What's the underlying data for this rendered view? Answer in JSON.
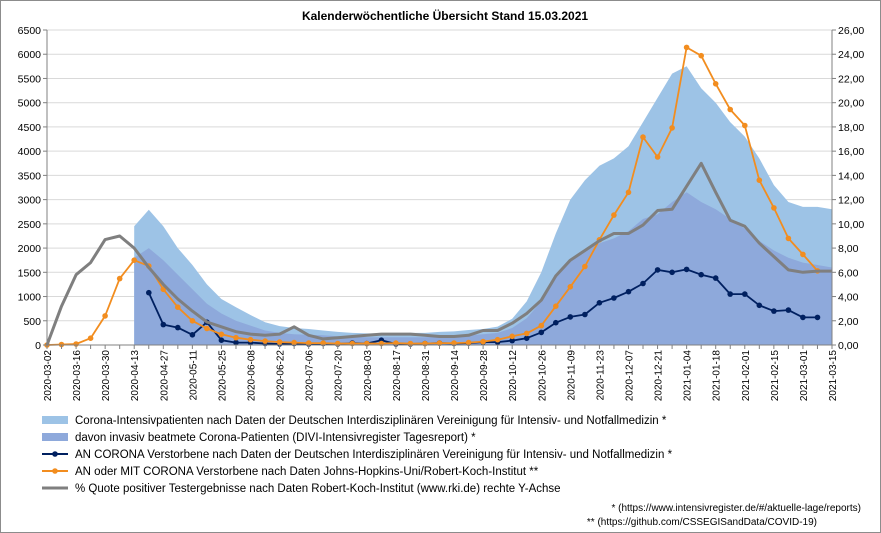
{
  "chart_data": {
    "type": "area+line",
    "title": "Kalenderwöchentliche Übersicht Stand 15.03.2021",
    "ylim_left": [
      0,
      6500
    ],
    "ylim_right": [
      0,
      26
    ],
    "yticks_left": [
      "0",
      "500",
      "1000",
      "1500",
      "2000",
      "2500",
      "3000",
      "3500",
      "4000",
      "4500",
      "5000",
      "5500",
      "6000",
      "6500"
    ],
    "yticks_right": [
      "0,00",
      "2,00",
      "4,00",
      "6,00",
      "8,00",
      "10,00",
      "12,00",
      "14,00",
      "16,00",
      "18,00",
      "20,00",
      "22,00",
      "24,00",
      "26,00"
    ],
    "x_labels": [
      "2020-03-02",
      "2020-03-16",
      "2020-03-30",
      "2020-04-13",
      "2020-04-27",
      "2020-05-11",
      "2020-05-25",
      "2020-06-08",
      "2020-06-22",
      "2020-07-06",
      "2020-07-20",
      "2020-08-03",
      "2020-08-17",
      "2020-08-31",
      "2020-09-14",
      "2020-09-28",
      "2020-10-12",
      "2020-10-26",
      "2020-11-09",
      "2020-11-23",
      "2020-12-07",
      "2020-12-21",
      "2021-01-04",
      "2021-01-18",
      "2021-02-01",
      "2021-02-15",
      "2021-03-01",
      "2021-03-15"
    ],
    "n_weeks": 55,
    "series": [
      {
        "name": "Corona-Intensivpatienten nach Daten der Deutschen Interdisziplinären Vereinigung für Intensiv- und Notfallmedizin *",
        "kind": "area",
        "axis": "left",
        "color": "#9dc3e6",
        "start": 6,
        "values": [
          2450,
          2790,
          2450,
          2000,
          1650,
          1250,
          950,
          780,
          620,
          470,
          390,
          350,
          330,
          300,
          270,
          250,
          240,
          240,
          240,
          250,
          250,
          270,
          280,
          310,
          330,
          380,
          540,
          900,
          1500,
          2300,
          3000,
          3400,
          3700,
          3850,
          4100,
          4600,
          5100,
          5600,
          5750,
          5300,
          5000,
          4600,
          4300,
          3850,
          3300,
          2950,
          2850,
          2850,
          2800
        ]
      },
      {
        "name": "davon invasiv beatmete Corona-Patienten (DIVI-Intensivregister Tagesreport)  *",
        "kind": "area",
        "axis": "left",
        "color": "#8ea9db",
        "start": 6,
        "values": [
          1800,
          2000,
          1750,
          1450,
          1150,
          850,
          650,
          500,
          400,
          300,
          250,
          220,
          210,
          200,
          180,
          170,
          160,
          160,
          160,
          160,
          160,
          170,
          180,
          200,
          220,
          250,
          350,
          550,
          900,
          1400,
          1750,
          1950,
          2100,
          2200,
          2350,
          2600,
          2700,
          2950,
          3150,
          2950,
          2800,
          2600,
          2400,
          2150,
          1950,
          1800,
          1700,
          1650,
          1600
        ]
      },
      {
        "name": "AN CORONA Verstorbene nach Daten der Deutschen Interdisziplinären Vereinigung für Intensiv- und Notfallmedizin *",
        "kind": "line",
        "axis": "left",
        "color": "#002060",
        "start": 7,
        "values": [
          1080,
          420,
          360,
          210,
          470,
          100,
          50,
          50,
          30,
          20,
          30,
          20,
          30,
          20,
          40,
          30,
          100,
          20,
          20,
          30,
          40,
          30,
          40,
          60,
          60,
          90,
          140,
          260,
          460,
          580,
          630,
          870,
          970,
          1100,
          1270,
          1550,
          1500,
          1560,
          1450,
          1380,
          1050,
          1050,
          820,
          700,
          720,
          570,
          570
        ]
      },
      {
        "name": "AN oder MIT CORONA Verstorbene nach Daten Johns-Hopkins-Uni/Robert-Koch-Institut **",
        "kind": "line",
        "axis": "left",
        "color": "#f28d1f",
        "start": 0,
        "values": [
          0,
          10,
          20,
          140,
          600,
          1370,
          1750,
          1630,
          1150,
          780,
          500,
          340,
          220,
          150,
          110,
          80,
          60,
          50,
          40,
          40,
          30,
          30,
          30,
          30,
          40,
          30,
          30,
          40,
          40,
          50,
          70,
          110,
          180,
          240,
          400,
          800,
          1200,
          1620,
          2170,
          2680,
          3150,
          4290,
          3880,
          4480,
          6140,
          5970,
          5390,
          4860,
          4530,
          3400,
          2830,
          2200,
          1870,
          1530
        ]
      },
      {
        "name": "% Quote positiver Testergebnisse nach Daten Robert-Koch-Institut (www.rki.de) rechte Y-Achse",
        "kind": "line",
        "axis": "right",
        "color": "#7f7f7f",
        "start": 0,
        "values": [
          0,
          3.2,
          5.8,
          6.8,
          8.7,
          9.0,
          8.0,
          6.4,
          5.0,
          3.8,
          2.8,
          1.9,
          1.5,
          1.1,
          0.9,
          0.8,
          0.9,
          1.5,
          0.8,
          0.5,
          0.6,
          0.7,
          0.8,
          0.9,
          0.9,
          0.9,
          0.8,
          0.7,
          0.7,
          0.8,
          1.2,
          1.2,
          1.8,
          2.6,
          3.7,
          5.7,
          7.0,
          7.8,
          8.6,
          9.2,
          9.2,
          9.9,
          11.1,
          11.2,
          13.1,
          15.0,
          12.6,
          10.3,
          9.8,
          8.4,
          7.3,
          6.2,
          6.0,
          6.1,
          6.1
        ]
      }
    ],
    "legend": [
      "Corona-Intensivpatienten nach Daten der Deutschen Interdisziplinären Vereinigung für Intensiv- und Notfallmedizin *",
      "davon invasiv beatmete Corona-Patienten (DIVI-Intensivregister Tagesreport)  *",
      "AN CORONA Verstorbene nach Daten der Deutschen Interdisziplinären Vereinigung für Intensiv- und Notfallmedizin *",
      "AN oder MIT CORONA Verstorbene nach Daten Johns-Hopkins-Uni/Robert-Koch-Institut **",
      "% Quote positiver Testergebnisse nach Daten Robert-Koch-Institut (www.rki.de) rechte Y-Achse"
    ],
    "notes": [
      "* (https://www.intensivregister.de/#/aktuelle-lage/reports)",
      "** (https://github.com/CSSEGISandData/COVID-19)"
    ]
  }
}
